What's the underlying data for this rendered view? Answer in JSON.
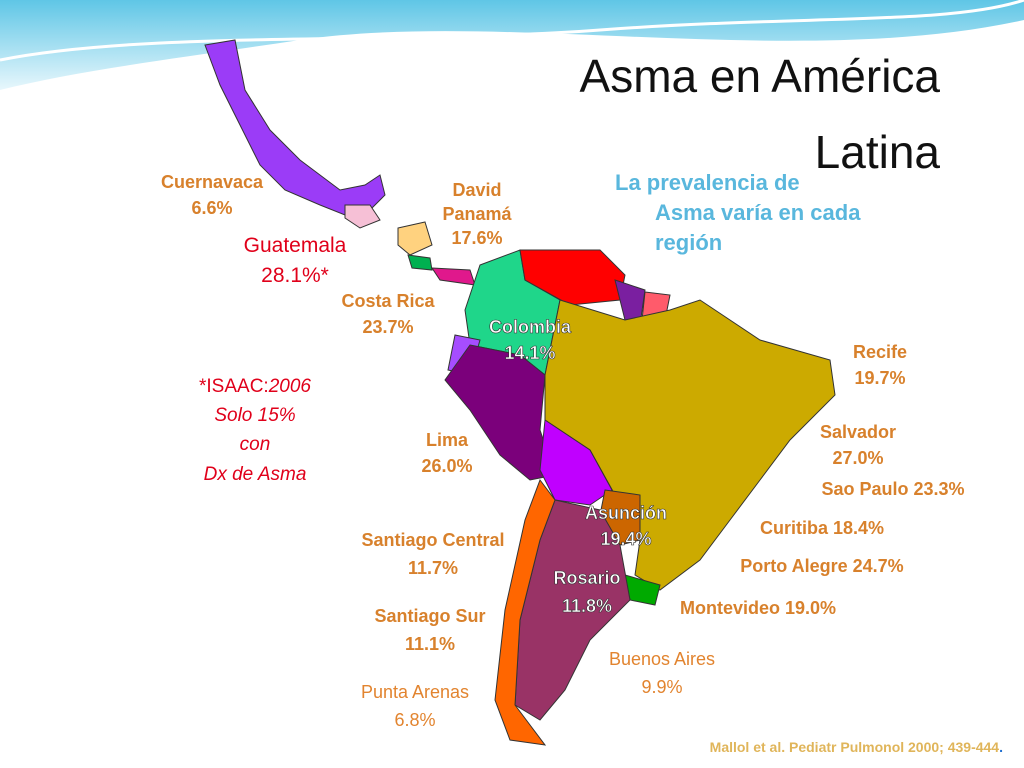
{
  "title": [
    "Asma en América",
    "Latina"
  ],
  "subtitle": [
    "La prevalencia de",
    "Asma varía en cada",
    "región"
  ],
  "labels": [
    {
      "lines": [
        "Cuernavaca",
        "6.6%"
      ]
    },
    {
      "lines": [
        "David",
        "Panamá",
        "17.6%"
      ]
    },
    {
      "lines": [
        "Guatemala",
        "28.1%*"
      ]
    },
    {
      "lines": [
        "Costa Rica",
        "23.7%"
      ]
    },
    {
      "lines": [
        "Colombia",
        "14.1%"
      ]
    },
    {
      "lines": [
        "Recife",
        "19.7%"
      ]
    },
    {
      "lines": [
        "Lima",
        "26.0%"
      ]
    },
    {
      "lines": [
        "Salvador",
        "27.0%"
      ]
    },
    {
      "lines": [
        "Sao Paulo 23.3%"
      ]
    },
    {
      "lines": [
        "Asunción",
        "19.4%"
      ]
    },
    {
      "lines": [
        "Santiago Central",
        "11.7%"
      ]
    },
    {
      "lines": [
        "Curitiba 18.4%"
      ]
    },
    {
      "lines": [
        "Porto Alegre 24.7%"
      ]
    },
    {
      "lines": [
        "Rosario",
        "11.8%"
      ]
    },
    {
      "lines": [
        "Montevideo 19.0%"
      ]
    },
    {
      "lines": [
        "Santiago Sur",
        "11.1%"
      ]
    },
    {
      "lines": [
        "Buenos Aires",
        "9.9%"
      ]
    },
    {
      "lines": [
        "Punta Arenas",
        "6.8%"
      ]
    }
  ],
  "note": [
    "*ISAAC:",
    "2006",
    "Solo 15%",
    "con",
    "Dx de Asma"
  ],
  "citation": {
    "text": "Mallol et al. Pediatr Pulmonol 2000; 439-444",
    "end": "."
  }
}
